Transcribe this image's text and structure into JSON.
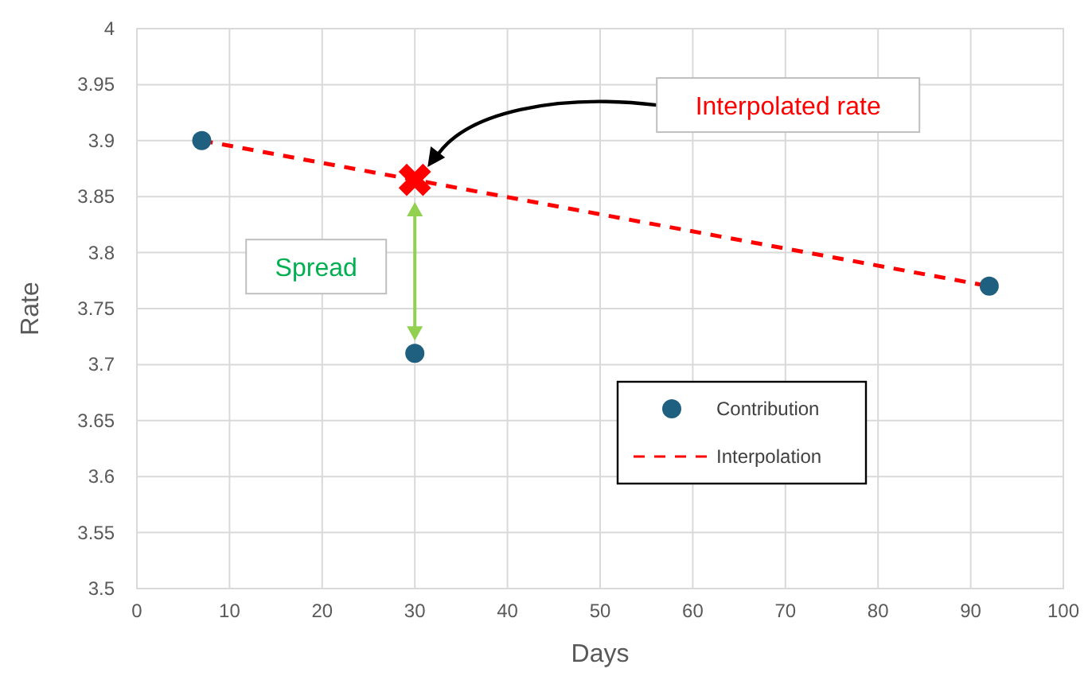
{
  "chart_data": {
    "type": "scatter",
    "xlabel": "Days",
    "ylabel": "Rate",
    "xlim": [
      0,
      100
    ],
    "xticks": [
      0,
      10,
      20,
      30,
      40,
      50,
      60,
      70,
      80,
      90,
      100
    ],
    "ylim": [
      3.5,
      4
    ],
    "yticks": [
      3.5,
      3.55,
      3.6,
      3.65,
      3.7,
      3.75,
      3.8,
      3.85,
      3.9,
      3.95,
      4
    ],
    "grid": true,
    "legend": "right",
    "series": [
      {
        "name": "Contribution",
        "marker": "circle",
        "color": "#1f5f7f",
        "x": [
          7,
          30,
          92
        ],
        "values": [
          3.9,
          3.71,
          3.77
        ]
      },
      {
        "name": "Interpolation",
        "type": "line",
        "line_style": "dashed",
        "marker": "none",
        "color": "#ff0000",
        "x": [
          7,
          92
        ],
        "values": [
          3.9,
          3.77
        ]
      },
      {
        "marker": "cross",
        "color": "#ff0000",
        "x": [
          30
        ],
        "values": [
          3.865
        ]
      }
    ],
    "annotations": [
      "Interpolated rate",
      "Spread"
    ]
  }
}
